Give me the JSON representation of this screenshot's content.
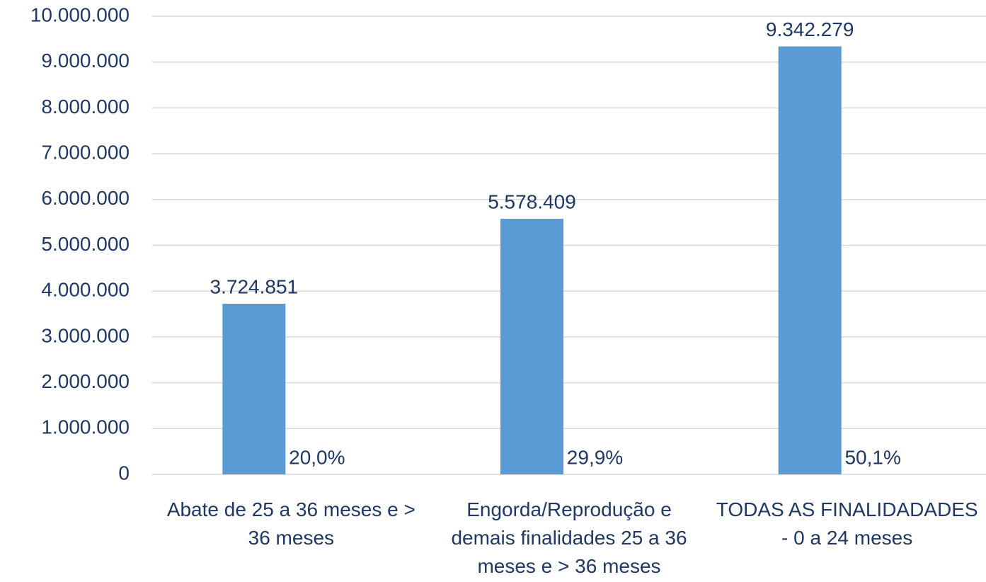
{
  "chart_data": {
    "type": "bar",
    "categories": [
      "Abate de 25 a 36 meses e > 36 meses",
      "Engorda/Reprodução e demais finalidades 25 a 36 meses e > 36 meses",
      "TODAS AS FINALIDADADES - 0 a 24 meses"
    ],
    "series": [
      {
        "color": "#5b9bd5",
        "values": [
          3724851,
          5578409,
          9342279
        ],
        "value_labels": [
          "3.724.851",
          "5.578.409",
          "9.342.279"
        ]
      },
      {
        "color": "#ed7d31",
        "values": [
          20.0,
          29.9,
          50.1
        ],
        "value_labels": [
          "20,0%",
          "29,9%",
          "50,1%"
        ]
      }
    ],
    "ylim": [
      0,
      10000000
    ],
    "yticks": [
      0,
      {
        "value": 1000000,
        "label": "1.000.000"
      },
      {
        "value": 2000000,
        "label": "2.000.000"
      },
      {
        "value": 3000000,
        "label": "3.000.000"
      },
      {
        "value": 4000000,
        "label": "4.000.000"
      },
      {
        "value": 5000000,
        "label": "5.000.000"
      },
      {
        "value": 6000000,
        "label": "6.000.000"
      },
      {
        "value": 7000000,
        "label": "7.000.000"
      },
      {
        "value": 8000000,
        "label": "8.000.000"
      },
      {
        "value": 9000000,
        "label": "9.000.000"
      },
      {
        "value": 10000000,
        "label": "10.000.000"
      }
    ],
    "grid": true
  }
}
